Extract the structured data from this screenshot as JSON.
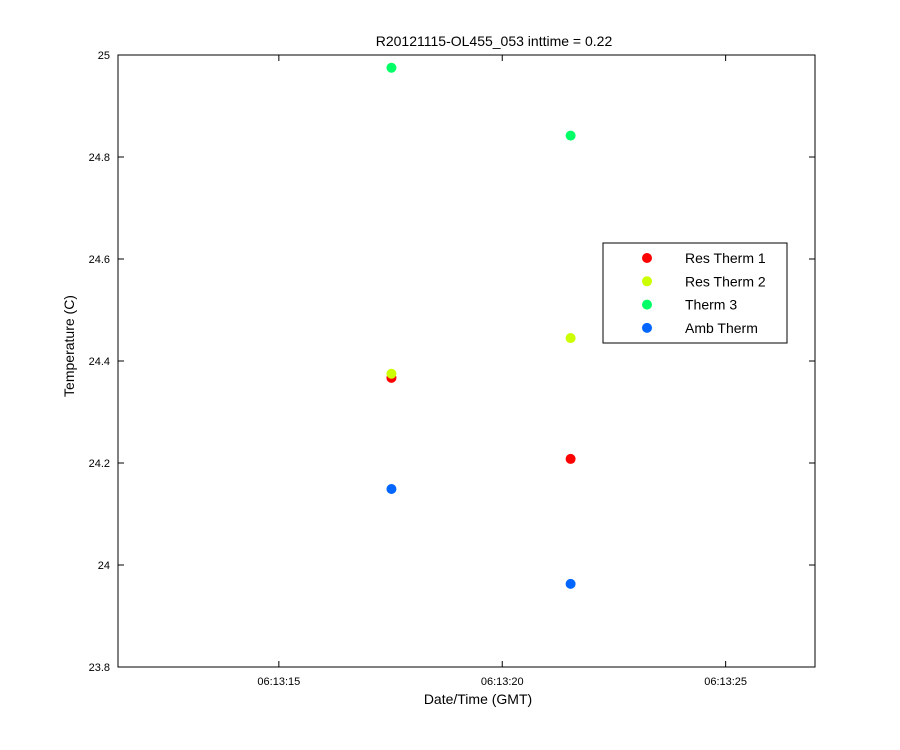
{
  "chart_data": {
    "type": "scatter",
    "title": "R20121115-OL455_053 inttime = 0.22",
    "xlabel": "Date/Time (GMT)",
    "ylabel": "Temperature (C)",
    "xlim": [
      "06:13:11.40",
      "06:13:27.00"
    ],
    "ylim": [
      23.8,
      25.0
    ],
    "x_ticks": [
      "06:13:15",
      "06:13:20",
      "06:13:25"
    ],
    "y_ticks": [
      23.8,
      24,
      24.2,
      24.4,
      24.6,
      24.8,
      25
    ],
    "x": [
      "06:13:17.52",
      "06:13:21.53"
    ],
    "series": [
      {
        "name": "Res Therm 1",
        "color": "#ff0000",
        "values": [
          24.367,
          24.208
        ]
      },
      {
        "name": "Res Therm 2",
        "color": "#ccff00",
        "values": [
          24.375,
          24.445
        ]
      },
      {
        "name": "Therm 3",
        "color": "#00ff66",
        "values": [
          24.975,
          24.842
        ]
      },
      {
        "name": "Amb Therm",
        "color": "#0066ff",
        "values": [
          24.149,
          23.963
        ]
      }
    ],
    "legend_position": "right",
    "grid": false
  }
}
